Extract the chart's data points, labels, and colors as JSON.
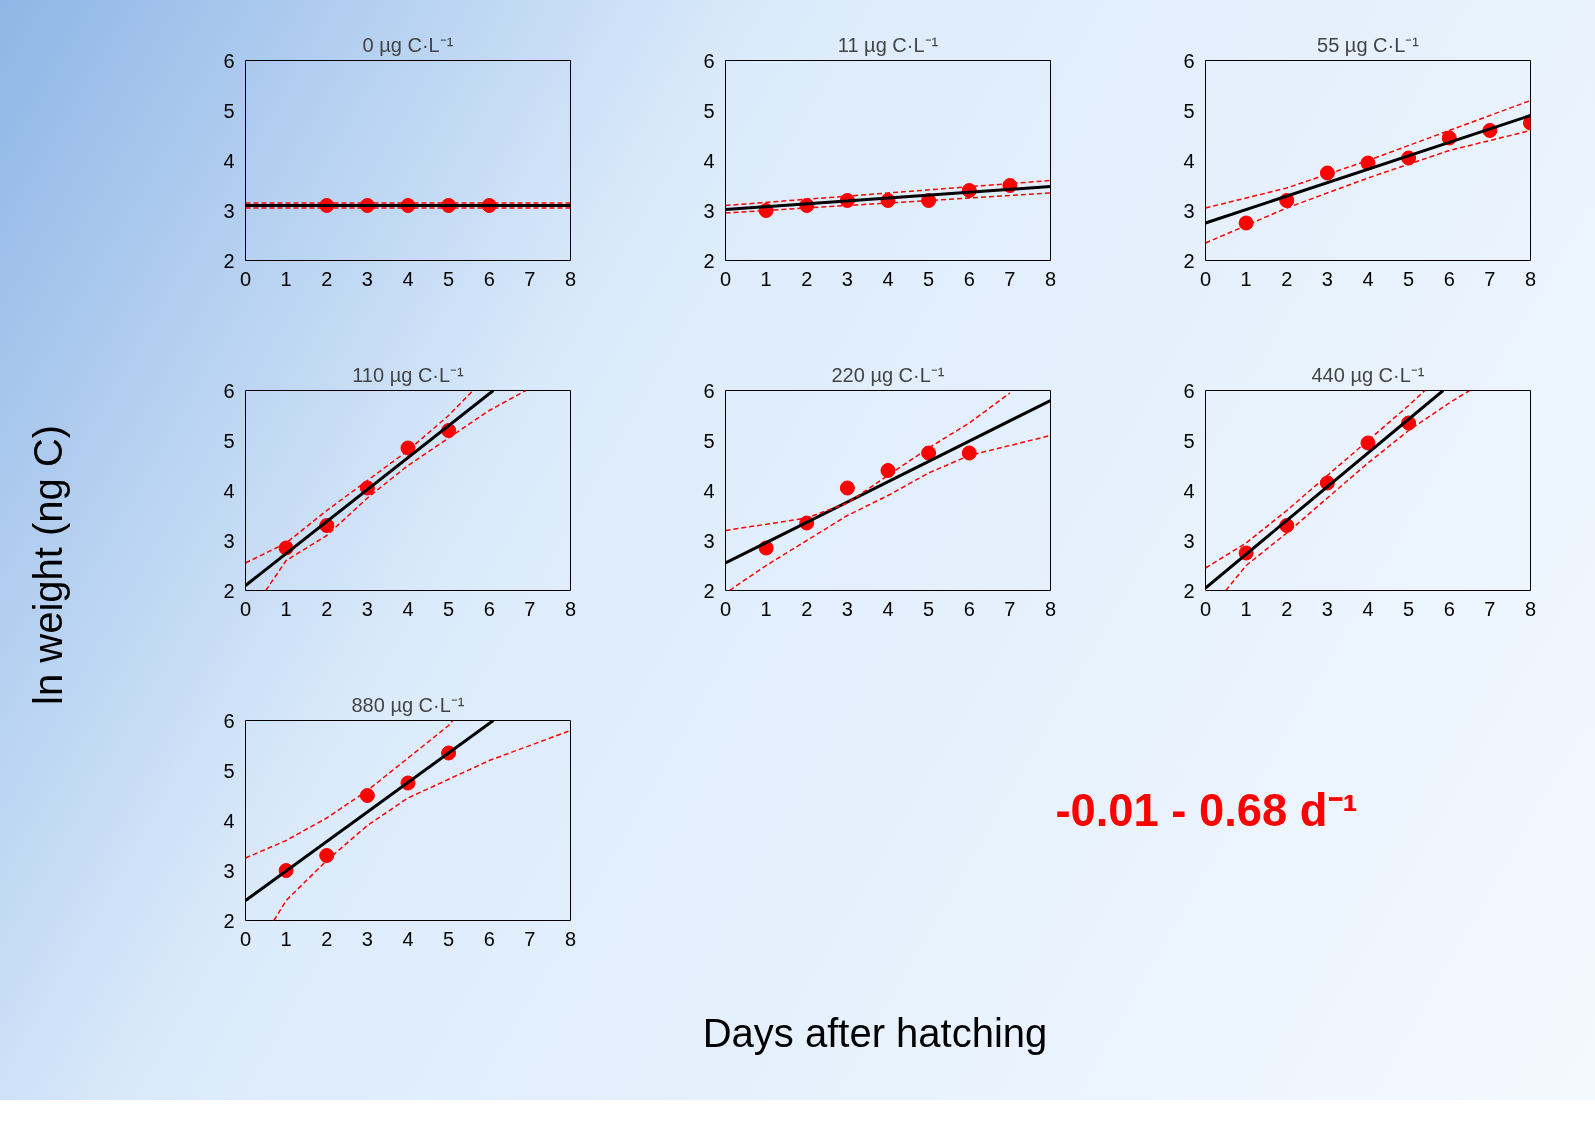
{
  "chart_data": [
    {
      "type": "scatter",
      "title": "0 µg C·L⁻¹",
      "xlim": [
        0,
        8
      ],
      "ylim": [
        2,
        6
      ],
      "xticks": [
        0,
        1,
        2,
        3,
        4,
        5,
        6,
        7,
        8
      ],
      "yticks": [
        2,
        3,
        4,
        5,
        6
      ],
      "grid": false,
      "series": [
        {
          "type": "scatter",
          "marker": "circle",
          "color": "#ff0000",
          "x": [
            2,
            3,
            4,
            5,
            6
          ],
          "values": [
            3.1,
            3.1,
            3.1,
            3.1,
            3.1
          ]
        },
        {
          "type": "line",
          "marker": "none",
          "color": "#000000",
          "x": [
            0,
            8
          ],
          "values": [
            3.1,
            3.1
          ]
        },
        {
          "type": "line",
          "marker": "none",
          "color": "#ff0000",
          "line_style": "dashed",
          "x": [
            0,
            8
          ],
          "values": [
            3.05,
            3.05
          ]
        },
        {
          "type": "line",
          "marker": "none",
          "color": "#ff0000",
          "line_style": "dashed",
          "x": [
            0,
            8
          ],
          "values": [
            3.15,
            3.15
          ]
        }
      ]
    },
    {
      "type": "scatter",
      "title": "11 µg C·L⁻¹",
      "xlim": [
        0,
        8
      ],
      "ylim": [
        2,
        6
      ],
      "xticks": [
        0,
        1,
        2,
        3,
        4,
        5,
        6,
        7,
        8
      ],
      "yticks": [
        2,
        3,
        4,
        5,
        6
      ],
      "grid": false,
      "series": [
        {
          "type": "scatter",
          "marker": "circle",
          "color": "#ff0000",
          "x": [
            1,
            2,
            3,
            4,
            5,
            6,
            7
          ],
          "values": [
            3.0,
            3.1,
            3.2,
            3.2,
            3.2,
            3.4,
            3.5
          ]
        },
        {
          "type": "line",
          "marker": "none",
          "color": "#000000",
          "x": [
            0,
            8
          ],
          "values": [
            3.02,
            3.48
          ]
        },
        {
          "type": "line",
          "marker": "none",
          "color": "#ff0000",
          "line_style": "dashed",
          "x": [
            0,
            8
          ],
          "values": [
            2.95,
            3.35
          ]
        },
        {
          "type": "line",
          "marker": "none",
          "color": "#ff0000",
          "line_style": "dashed",
          "x": [
            0,
            8
          ],
          "values": [
            3.1,
            3.6
          ]
        }
      ]
    },
    {
      "type": "scatter",
      "title": "55 µg C·L⁻¹",
      "xlim": [
        0,
        8
      ],
      "ylim": [
        2,
        6
      ],
      "xticks": [
        0,
        1,
        2,
        3,
        4,
        5,
        6,
        7,
        8
      ],
      "yticks": [
        2,
        3,
        4,
        5,
        6
      ],
      "grid": false,
      "series": [
        {
          "type": "scatter",
          "marker": "circle",
          "color": "#ff0000",
          "x": [
            1,
            2,
            3,
            4,
            5,
            6,
            7,
            8
          ],
          "values": [
            2.75,
            3.2,
            3.75,
            3.95,
            4.05,
            4.45,
            4.6,
            4.75
          ]
        },
        {
          "type": "line",
          "marker": "none",
          "color": "#000000",
          "x": [
            0,
            8
          ],
          "values": [
            2.75,
            4.9
          ]
        },
        {
          "type": "line",
          "marker": "none",
          "color": "#ff0000",
          "line_style": "dashed",
          "x": [
            0,
            2,
            4,
            6,
            8
          ],
          "values": [
            2.35,
            3.05,
            3.65,
            4.2,
            4.6
          ]
        },
        {
          "type": "line",
          "marker": "none",
          "color": "#ff0000",
          "line_style": "dashed",
          "x": [
            0,
            2,
            4,
            6,
            8
          ],
          "values": [
            3.05,
            3.45,
            4.0,
            4.6,
            5.2
          ]
        }
      ]
    },
    {
      "type": "scatter",
      "title": "110 µg C·L⁻¹",
      "xlim": [
        0,
        8
      ],
      "ylim": [
        2,
        6
      ],
      "xticks": [
        0,
        1,
        2,
        3,
        4,
        5,
        6,
        7,
        8
      ],
      "yticks": [
        2,
        3,
        4,
        5,
        6
      ],
      "grid": false,
      "series": [
        {
          "type": "scatter",
          "marker": "circle",
          "color": "#ff0000",
          "x": [
            1,
            2,
            3,
            4,
            5
          ],
          "values": [
            2.85,
            3.3,
            4.05,
            4.85,
            5.2
          ]
        },
        {
          "type": "line",
          "marker": "none",
          "color": "#000000",
          "x": [
            0,
            6.1
          ],
          "values": [
            2.1,
            6
          ]
        },
        {
          "type": "line",
          "marker": "none",
          "color": "#ff0000",
          "line_style": "dashed",
          "x": [
            0,
            1,
            2,
            3,
            4,
            5,
            5.6
          ],
          "values": [
            2.55,
            2.95,
            3.6,
            4.2,
            4.8,
            5.5,
            6
          ]
        },
        {
          "type": "line",
          "marker": "none",
          "color": "#ff0000",
          "line_style": "dashed",
          "x": [
            0.5,
            1,
            2,
            3,
            4,
            5,
            6,
            6.9
          ],
          "values": [
            2,
            2.6,
            3.1,
            3.85,
            4.5,
            5.05,
            5.6,
            6
          ]
        }
      ]
    },
    {
      "type": "scatter",
      "title": "220 µg C·L⁻¹",
      "xlim": [
        0,
        8
      ],
      "ylim": [
        2,
        6
      ],
      "xticks": [
        0,
        1,
        2,
        3,
        4,
        5,
        6,
        7,
        8
      ],
      "yticks": [
        2,
        3,
        4,
        5,
        6
      ],
      "grid": false,
      "series": [
        {
          "type": "scatter",
          "marker": "circle",
          "color": "#ff0000",
          "x": [
            1,
            2,
            3,
            4,
            5,
            6
          ],
          "values": [
            2.85,
            3.35,
            4.05,
            4.4,
            4.75,
            4.75
          ]
        },
        {
          "type": "line",
          "marker": "none",
          "color": "#000000",
          "x": [
            0,
            8
          ],
          "values": [
            2.55,
            5.8
          ]
        },
        {
          "type": "line",
          "marker": "none",
          "color": "#ff0000",
          "line_style": "dashed",
          "x": [
            0,
            2,
            3,
            4,
            5,
            6,
            7
          ],
          "values": [
            3.2,
            3.45,
            3.75,
            4.3,
            4.85,
            5.35,
            5.95
          ]
        },
        {
          "type": "line",
          "marker": "none",
          "color": "#ff0000",
          "line_style": "dashed",
          "x": [
            0.1,
            1,
            2,
            3,
            4,
            5,
            6,
            8
          ],
          "values": [
            2,
            2.5,
            3.0,
            3.5,
            3.9,
            4.35,
            4.7,
            5.1
          ]
        }
      ]
    },
    {
      "type": "scatter",
      "title": "440 µg C·L⁻¹",
      "xlim": [
        0,
        8
      ],
      "ylim": [
        2,
        6
      ],
      "xticks": [
        0,
        1,
        2,
        3,
        4,
        5,
        6,
        7,
        8
      ],
      "yticks": [
        2,
        3,
        4,
        5,
        6
      ],
      "grid": false,
      "series": [
        {
          "type": "scatter",
          "marker": "circle",
          "color": "#ff0000",
          "x": [
            1,
            2,
            3,
            4,
            5
          ],
          "values": [
            2.75,
            3.3,
            4.15,
            4.95,
            5.35
          ]
        },
        {
          "type": "line",
          "marker": "none",
          "color": "#000000",
          "x": [
            0,
            5.85
          ],
          "values": [
            2.05,
            6
          ]
        },
        {
          "type": "line",
          "marker": "none",
          "color": "#ff0000",
          "line_style": "dashed",
          "x": [
            0,
            1,
            2,
            3,
            4,
            5,
            5.4
          ],
          "values": [
            2.45,
            2.95,
            3.6,
            4.3,
            5.0,
            5.7,
            6
          ]
        },
        {
          "type": "line",
          "marker": "none",
          "color": "#ff0000",
          "line_style": "dashed",
          "x": [
            0.5,
            1,
            2,
            3,
            4,
            5,
            6,
            6.5
          ],
          "values": [
            2,
            2.5,
            3.15,
            3.85,
            4.55,
            5.2,
            5.75,
            6
          ]
        }
      ]
    },
    {
      "type": "scatter",
      "title": "880 µg C·L⁻¹",
      "xlim": [
        0,
        8
      ],
      "ylim": [
        2,
        6
      ],
      "xticks": [
        0,
        1,
        2,
        3,
        4,
        5,
        6,
        7,
        8
      ],
      "yticks": [
        2,
        3,
        4,
        5,
        6
      ],
      "grid": false,
      "series": [
        {
          "type": "scatter",
          "marker": "circle",
          "color": "#ff0000",
          "x": [
            1,
            2,
            3,
            4,
            5
          ],
          "values": [
            3.0,
            3.3,
            4.5,
            4.75,
            5.35
          ]
        },
        {
          "type": "line",
          "marker": "none",
          "color": "#000000",
          "x": [
            0,
            6.1
          ],
          "values": [
            2.4,
            6
          ]
        },
        {
          "type": "line",
          "marker": "none",
          "color": "#ff0000",
          "line_style": "dashed",
          "x": [
            0,
            1,
            2,
            3,
            4,
            5,
            5.1
          ],
          "values": [
            3.25,
            3.6,
            4.05,
            4.6,
            5.25,
            5.9,
            6
          ]
        },
        {
          "type": "line",
          "marker": "none",
          "color": "#ff0000",
          "line_style": "dashed",
          "x": [
            0.7,
            1,
            2,
            3,
            4,
            6,
            8
          ],
          "values": [
            2,
            2.4,
            3.2,
            3.9,
            4.45,
            5.2,
            5.8
          ]
        }
      ]
    },
    {
      "type": "other",
      "xlabel": "Days after hatching",
      "ylabel": "ln weight (ng C)",
      "annotations": [
        "-0.01 - 0.68 d⁻¹"
      ]
    }
  ]
}
